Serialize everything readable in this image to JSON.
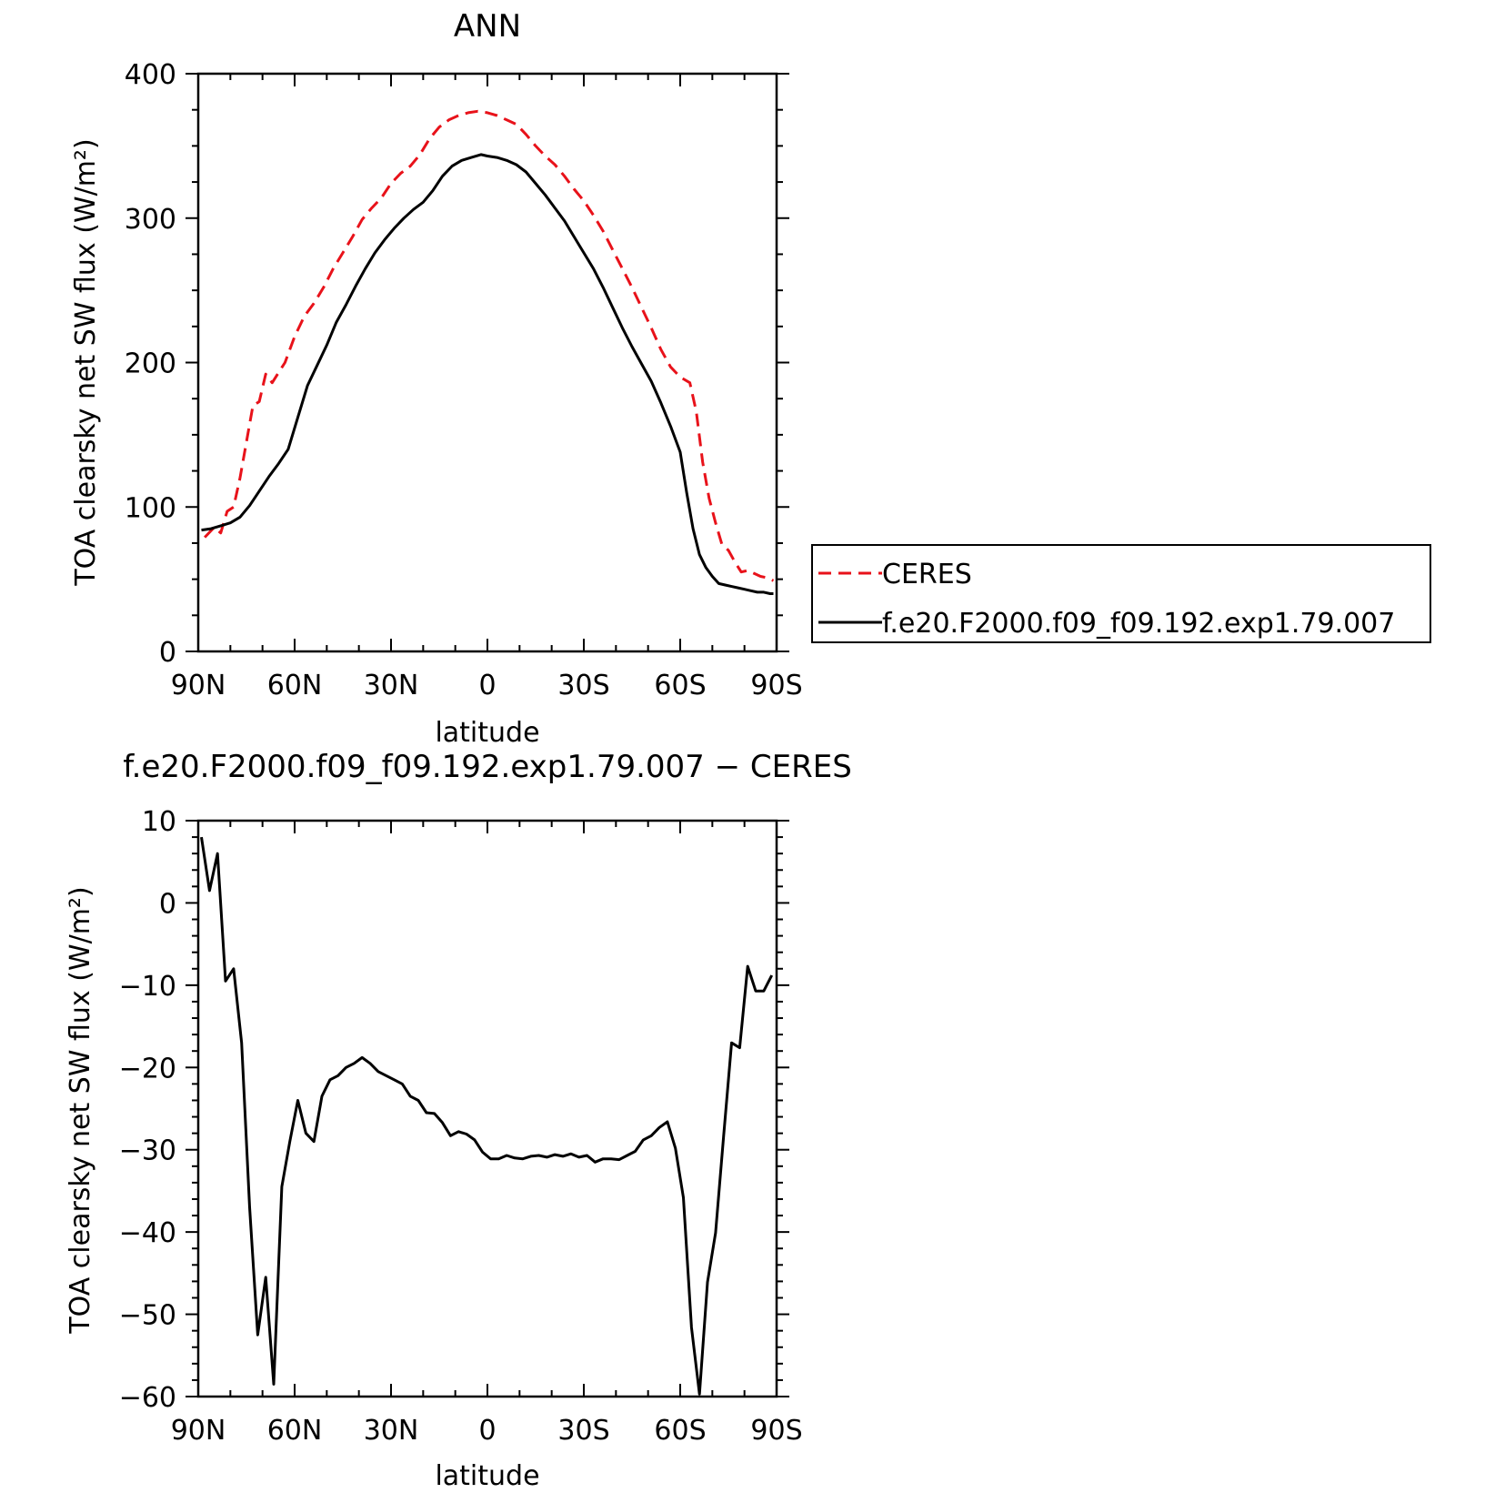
{
  "chart_data": [
    {
      "type": "line",
      "title": "ANN",
      "xlabel": "latitude",
      "ylabel": "TOA clearsky net SW flux (W/m²)",
      "xlim": [
        90,
        -90
      ],
      "ylim": [
        0,
        400
      ],
      "x_tick_labels": [
        "90N",
        "60N",
        "30N",
        "0",
        "30S",
        "60S",
        "90S"
      ],
      "y_tick_labels": [
        "0",
        "100",
        "200",
        "300",
        "400"
      ],
      "legend": {
        "placement": "right",
        "entries": [
          "CERES",
          "f.e20.F2000.f09_f09.192.exp1.79.007"
        ]
      },
      "series": [
        {
          "name": "CERES",
          "color": "#e8121a",
          "dash": "dashed",
          "x": [
            88,
            85,
            83,
            81,
            79,
            77,
            75,
            73,
            71,
            69,
            67,
            65,
            63,
            60,
            57,
            54,
            51,
            48,
            45,
            42,
            39,
            36,
            33,
            30,
            27,
            24,
            21,
            18,
            15,
            12,
            9,
            6,
            3,
            0,
            -3,
            -6,
            -9,
            -12,
            -15,
            -18,
            -21,
            -24,
            -27,
            -30,
            -33,
            -36,
            -39,
            -42,
            -45,
            -48,
            -51,
            -54,
            -57,
            -60,
            -63,
            -65,
            -67,
            -69,
            -71,
            -73,
            -75,
            -77,
            -79,
            -81,
            -83,
            -85,
            -87,
            -89
          ],
          "y": [
            79,
            86,
            82,
            97,
            100,
            120,
            145,
            170,
            173,
            192,
            186,
            193,
            200,
            218,
            232,
            241,
            252,
            265,
            276,
            287,
            299,
            307,
            314,
            324,
            331,
            336,
            344,
            355,
            363,
            368,
            371,
            373,
            374,
            373,
            371,
            368,
            365,
            358,
            350,
            343,
            337,
            329,
            320,
            312,
            302,
            291,
            278,
            265,
            252,
            238,
            224,
            209,
            197,
            190,
            186,
            166,
            131,
            106,
            89,
            74,
            70,
            62,
            55,
            56,
            54,
            52,
            51,
            49
          ]
        },
        {
          "name": "f.e20.F2000.f09_f09.192.exp1.79.007",
          "color": "#000000",
          "dash": "solid",
          "x": [
            89,
            86,
            83,
            80,
            77,
            74,
            71,
            68,
            65,
            62,
            59,
            56,
            53,
            50,
            47,
            44,
            41,
            38,
            35,
            32,
            29,
            26,
            23,
            20,
            17,
            14,
            11,
            8,
            5,
            2,
            0,
            -3,
            -6,
            -9,
            -12,
            -15,
            -18,
            -21,
            -24,
            -27,
            -30,
            -33,
            -36,
            -39,
            -42,
            -45,
            -48,
            -51,
            -54,
            -57,
            -60,
            -62,
            -64,
            -66,
            -68,
            -70,
            -72,
            -74,
            -76,
            -78,
            -80,
            -82,
            -84,
            -86,
            -88,
            -89
          ],
          "y": [
            84,
            85,
            87,
            89,
            93,
            101,
            111,
            121,
            130,
            140,
            162,
            184,
            198,
            212,
            228,
            240,
            253,
            265,
            276,
            285,
            293,
            300,
            306,
            311,
            319,
            329,
            336,
            340,
            342,
            344,
            343,
            342,
            340,
            337,
            332,
            324,
            316,
            307,
            298,
            287,
            276,
            265,
            252,
            238,
            224,
            211,
            199,
            187,
            172,
            156,
            138,
            110,
            85,
            67,
            58,
            52,
            47,
            46,
            45,
            44,
            43,
            42,
            41,
            41,
            40,
            40
          ]
        }
      ]
    },
    {
      "type": "line",
      "title": "f.e20.F2000.f09_f09.192.exp1.79.007 − CERES",
      "xlabel": "latitude",
      "ylabel": "TOA clearsky net SW flux (W/m²)",
      "xlim": [
        90,
        -90
      ],
      "ylim": [
        -60,
        10
      ],
      "x_tick_labels": [
        "90N",
        "60N",
        "30N",
        "0",
        "30S",
        "60S",
        "90S"
      ],
      "y_tick_labels": [
        "−60",
        "−50",
        "−40",
        "−30",
        "−20",
        "−10",
        "0",
        "10"
      ],
      "series": [
        {
          "color": "#000000",
          "dash": "solid",
          "x": [
            89,
            86.5,
            84,
            81.5,
            79,
            76.5,
            74,
            71.5,
            69,
            66.5,
            64,
            61.5,
            59,
            56.5,
            54,
            51.5,
            49,
            46.5,
            44,
            41.5,
            39,
            36.5,
            34,
            31.5,
            29,
            26.5,
            24,
            21.5,
            19,
            16.5,
            14,
            11.5,
            9,
            6.5,
            4,
            1.5,
            -1,
            -3.5,
            -6,
            -8.5,
            -11,
            -13.5,
            -16,
            -18.5,
            -21,
            -23.5,
            -26,
            -28.5,
            -31,
            -33.5,
            -36,
            -38.5,
            -41,
            -43.5,
            -46,
            -48.5,
            -51,
            -53.5,
            -56,
            -58.5,
            -61,
            -63.5,
            -66,
            -68.5,
            -71,
            -73.5,
            -76,
            -78.5,
            -81,
            -83.5,
            -86,
            -88.5
          ],
          "y": [
            8,
            1.5,
            6,
            -9.5,
            -8,
            -17,
            -37,
            -52.5,
            -45.5,
            -58.5,
            -34.5,
            -29,
            -24,
            -28,
            -29,
            -23.5,
            -21.5,
            -21,
            -20,
            -19.5,
            -18.8,
            -19.5,
            -20.5,
            -21,
            -21.5,
            -22,
            -23.5,
            -24,
            -25.5,
            -25.6,
            -26.7,
            -28.3,
            -27.8,
            -28.1,
            -28.8,
            -30.3,
            -31.1,
            -31.1,
            -30.7,
            -31,
            -31.1,
            -30.8,
            -30.7,
            -30.9,
            -30.6,
            -30.8,
            -30.5,
            -30.9,
            -30.7,
            -31.5,
            -31.1,
            -31.1,
            -31.2,
            -30.7,
            -30.2,
            -28.8,
            -28.3,
            -27.3,
            -26.6,
            -29.8,
            -35.8,
            -51.6,
            -59.7,
            -46.1,
            -40.1,
            -28.4,
            -17,
            -17.6,
            -7.7,
            -10.7,
            -10.7,
            -8.8
          ]
        }
      ]
    }
  ]
}
